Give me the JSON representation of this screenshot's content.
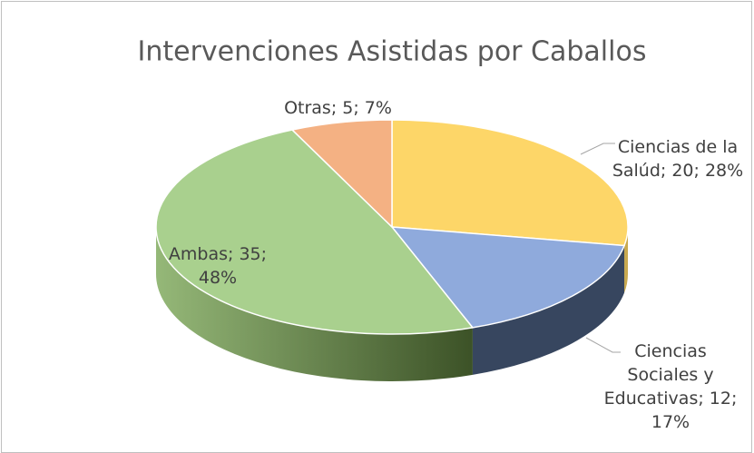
{
  "chart_data": {
    "type": "pie3d",
    "title": "Intervenciones Asistidas por Caballos",
    "values": [
      20,
      12,
      35,
      5
    ],
    "value_labels": [
      "Ciencias de la Salúd; 20; 28%",
      "Ciencias Sociales y Educativas; 12; 17%",
      "Ambas; 35; 48%",
      "Otras; 5; 7%"
    ],
    "colors": [
      "#fdd668",
      "#8faadc",
      "#a9d08e",
      "#f4b183"
    ]
  }
}
